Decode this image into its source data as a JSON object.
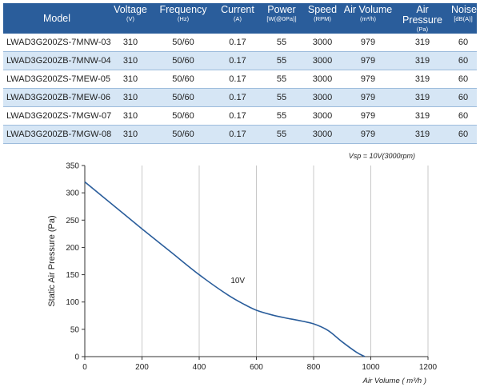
{
  "table": {
    "headers": [
      {
        "label": "Model",
        "unit": ""
      },
      {
        "label": "Voltage",
        "unit": "(V)"
      },
      {
        "label": "Frequency",
        "unit": "(Hz)"
      },
      {
        "label": "Current",
        "unit": "(A)"
      },
      {
        "label": "Power",
        "unit": "[W(@0Pa)]"
      },
      {
        "label": "Speed",
        "unit": "(RPM)"
      },
      {
        "label": "Air Volume",
        "unit": "(m³/h)"
      },
      {
        "label": "Air Pressure",
        "unit": "(Pa)"
      },
      {
        "label": "Noise",
        "unit": "[dB(A)]"
      }
    ],
    "rows": [
      [
        "LWAD3G200ZS-7MNW-03",
        "310",
        "50/60",
        "0.17",
        "55",
        "3000",
        "979",
        "319",
        "60"
      ],
      [
        "LWAD3G200ZB-7MNW-04",
        "310",
        "50/60",
        "0.17",
        "55",
        "3000",
        "979",
        "319",
        "60"
      ],
      [
        "LWAD3G200ZS-7MEW-05",
        "310",
        "50/60",
        "0.17",
        "55",
        "3000",
        "979",
        "319",
        "60"
      ],
      [
        "LWAD3G200ZB-7MEW-06",
        "310",
        "50/60",
        "0.17",
        "55",
        "3000",
        "979",
        "319",
        "60"
      ],
      [
        "LWAD3G200ZS-7MGW-07",
        "310",
        "50/60",
        "0.17",
        "55",
        "3000",
        "979",
        "319",
        "60"
      ],
      [
        "LWAD3G200ZB-7MGW-08",
        "310",
        "50/60",
        "0.17",
        "55",
        "3000",
        "979",
        "319",
        "60"
      ]
    ]
  },
  "colors": {
    "header_bg": "#2a5d9b",
    "row_alt_bg": "#d6e6f5",
    "curve": "#2a5d9b",
    "grid": "#c8c8c8"
  },
  "chart_data": {
    "type": "line",
    "title": "Vsp = 10V(3000rpm)",
    "xlabel": "Air Volume ( m³/h )",
    "ylabel": "Static Air Pressure  (Pa)",
    "xlim": [
      0,
      1200
    ],
    "ylim": [
      0,
      350
    ],
    "xticks": [
      0,
      200,
      400,
      600,
      800,
      1000,
      1200
    ],
    "yticks": [
      0,
      50,
      100,
      150,
      200,
      250,
      300,
      350
    ],
    "grid": "vertical",
    "series": [
      {
        "name": "10V",
        "x": [
          0,
          100,
          200,
          300,
          400,
          500,
          560,
          600,
          650,
          700,
          750,
          800,
          850,
          900,
          950,
          979
        ],
        "y": [
          320,
          277,
          234,
          192,
          150,
          113,
          95,
          85,
          77,
          71,
          66,
          60,
          48,
          27,
          8,
          0
        ]
      }
    ],
    "annotations": [
      {
        "text": "10V",
        "x": 510,
        "y": 135
      }
    ]
  }
}
